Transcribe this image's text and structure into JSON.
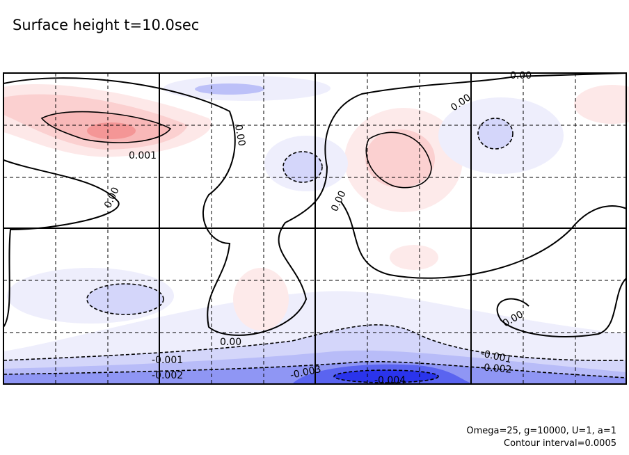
{
  "chart_data": {
    "type": "contour",
    "title": "Surface height t=10.0sec",
    "annotations": [
      "Omega=25, g=10000, U=1, a=1",
      "Contour interval=0.0005"
    ],
    "contour_interval": 0.0005,
    "grid": true,
    "colors": {
      "positive": "#f08080",
      "negative": "#3040f0",
      "zero": "#ffffff"
    },
    "contour_labels": [
      {
        "text": "0.00"
      },
      {
        "text": "0.00"
      },
      {
        "text": "0.001"
      },
      {
        "text": "0.00"
      },
      {
        "text": "0.00"
      },
      {
        "text": "0.00"
      },
      {
        "text": "0.00"
      },
      {
        "text": "0.00"
      },
      {
        "text": "-0.001"
      },
      {
        "text": "-0.002"
      },
      {
        "text": "-0.003"
      },
      {
        "text": "-0.004"
      },
      {
        "text": "-0.001"
      },
      {
        "text": "-0.002"
      }
    ],
    "extrema": [
      {
        "sign": "positive",
        "level": 0.0025
      },
      {
        "sign": "positive",
        "level": 0.0015
      },
      {
        "sign": "negative",
        "level": -0.0015
      },
      {
        "sign": "negative",
        "level": -0.001
      },
      {
        "sign": "negative",
        "level": -0.0045
      }
    ]
  }
}
